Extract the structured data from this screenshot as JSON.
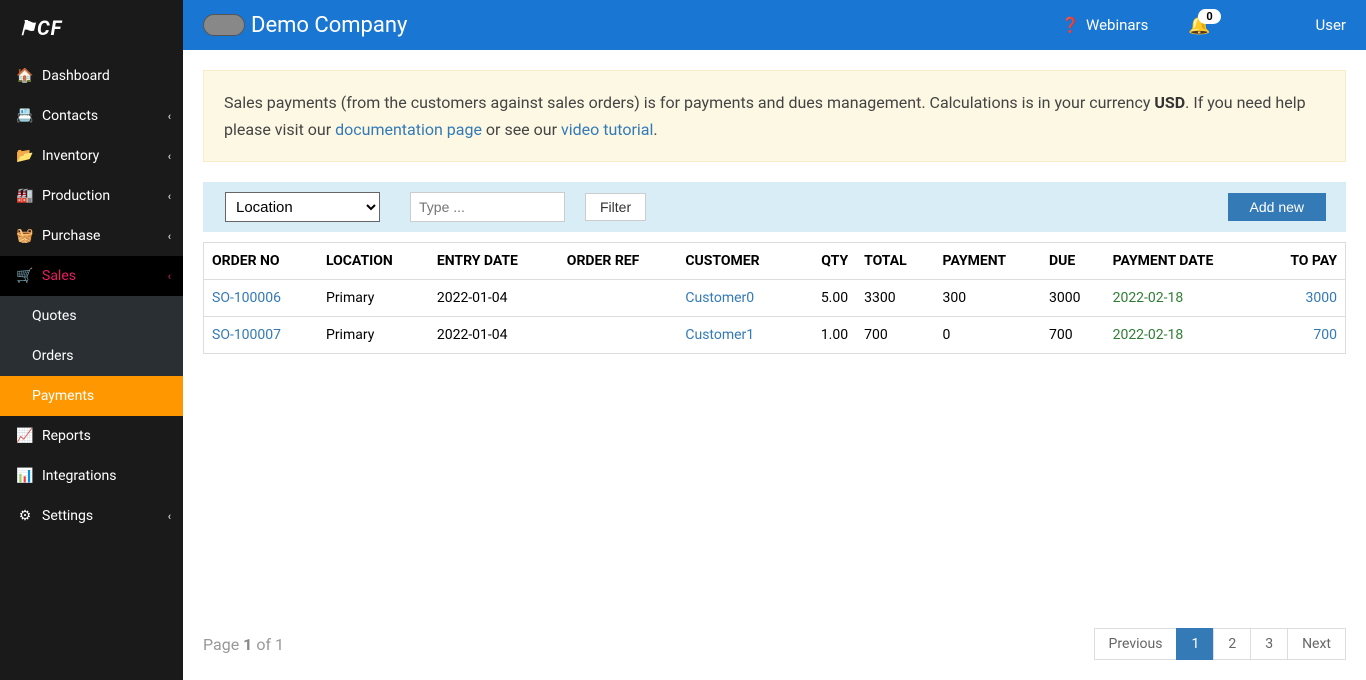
{
  "brand": "CF",
  "sidebar": {
    "items": [
      {
        "label": "Dashboard",
        "icon": "🏠",
        "expandable": false
      },
      {
        "label": "Contacts",
        "icon": "📇",
        "expandable": true
      },
      {
        "label": "Inventory",
        "icon": "📂",
        "expandable": true
      },
      {
        "label": "Production",
        "icon": "🏭",
        "expandable": true
      },
      {
        "label": "Purchase",
        "icon": "🧺",
        "expandable": true
      },
      {
        "label": "Sales",
        "icon": "🛒",
        "expandable": true,
        "active": true
      },
      {
        "label": "Reports",
        "icon": "📈",
        "expandable": false
      },
      {
        "label": "Integrations",
        "icon": "📊",
        "expandable": false
      },
      {
        "label": "Settings",
        "icon": "⚙",
        "expandable": true
      }
    ],
    "sales_sub": [
      {
        "label": "Quotes"
      },
      {
        "label": "Orders"
      },
      {
        "label": "Payments",
        "selected": true
      }
    ]
  },
  "topbar": {
    "company": "Demo Company",
    "webinars": "Webinars",
    "notif_count": "0",
    "user": "User"
  },
  "info": {
    "text1": "Sales payments (from the customers against sales orders) is for payments and dues management. Calculations is in your currency ",
    "currency": "USD",
    "text2": ". If you need help please visit our ",
    "doc_link": "documentation page",
    "text3": " or see our ",
    "video_link": "video tutorial",
    "text4": "."
  },
  "filter": {
    "location_label": "Location",
    "type_placeholder": "Type ...",
    "filter_btn": "Filter",
    "add_new": "Add new"
  },
  "table": {
    "columns": [
      "ORDER NO",
      "LOCATION",
      "ENTRY DATE",
      "ORDER REF",
      "CUSTOMER",
      "QTY",
      "TOTAL",
      "PAYMENT",
      "DUE",
      "PAYMENT DATE",
      "TO PAY"
    ],
    "rows": [
      {
        "order_no": "SO-100006",
        "location": "Primary",
        "entry_date": "2022-01-04",
        "order_ref": "",
        "customer": "Customer0",
        "qty": "5.00",
        "total": "3300",
        "payment": "300",
        "due": "3000",
        "payment_date": "2022-02-18",
        "to_pay": "3000"
      },
      {
        "order_no": "SO-100007",
        "location": "Primary",
        "entry_date": "2022-01-04",
        "order_ref": "",
        "customer": "Customer1",
        "qty": "1.00",
        "total": "700",
        "payment": "0",
        "due": "700",
        "payment_date": "2022-02-18",
        "to_pay": "700"
      }
    ]
  },
  "pagination": {
    "page_text1": "Page ",
    "page_current": "1",
    "page_text2": " of 1",
    "prev": "Previous",
    "pages": [
      "1",
      "2",
      "3"
    ],
    "next": "Next"
  }
}
